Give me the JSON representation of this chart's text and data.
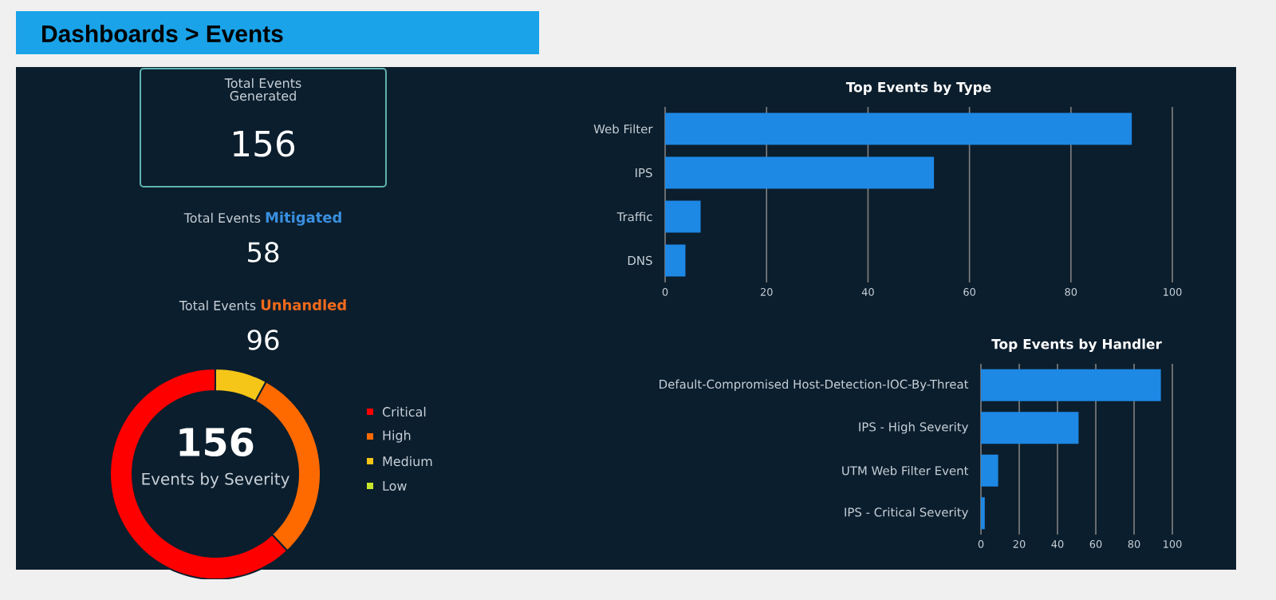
{
  "chart_data": [
    {
      "type": "other",
      "title": "Dashboards > Events",
      "annotations": [
        "Total Events Generated",
        "156",
        "Total Events",
        "Mitigated",
        "58",
        "Total Events",
        "Unhandled",
        "96"
      ]
    },
    {
      "type": "donut",
      "title": "Events by Severity",
      "categories": [
        "Critical",
        "High",
        "Medium",
        "Low"
      ],
      "values": [
        62,
        30,
        8,
        0
      ],
      "colors": [
        "#ff0000",
        "#ff6a00",
        "#f5c518",
        "#c6e62b"
      ],
      "annotations": [
        "156"
      ],
      "legend": "right"
    },
    {
      "type": "bar",
      "orientation": "horizontal",
      "title": "Top Events by Type",
      "categories": [
        "Web Filter",
        "IPS",
        "Traffic",
        "DNS"
      ],
      "values": [
        92,
        53,
        7,
        4
      ],
      "color": "#1e88e5",
      "xlim": [
        0,
        100
      ],
      "xticks": [
        0,
        20,
        40,
        60,
        80,
        100
      ],
      "grid": "x"
    },
    {
      "type": "bar",
      "orientation": "horizontal",
      "title": "Top Events by Handler",
      "categories": [
        "Default-Compromised Host-Detection-IOC-By-Threat",
        "IPS - High Severity",
        "UTM Web Filter Event",
        "IPS - Critical Severity"
      ],
      "values": [
        94,
        51,
        9,
        2
      ],
      "color": "#1e88e5",
      "xlim": [
        0,
        100
      ],
      "xticks": [
        0,
        20,
        40,
        60,
        80,
        100
      ],
      "grid": "x"
    }
  ]
}
